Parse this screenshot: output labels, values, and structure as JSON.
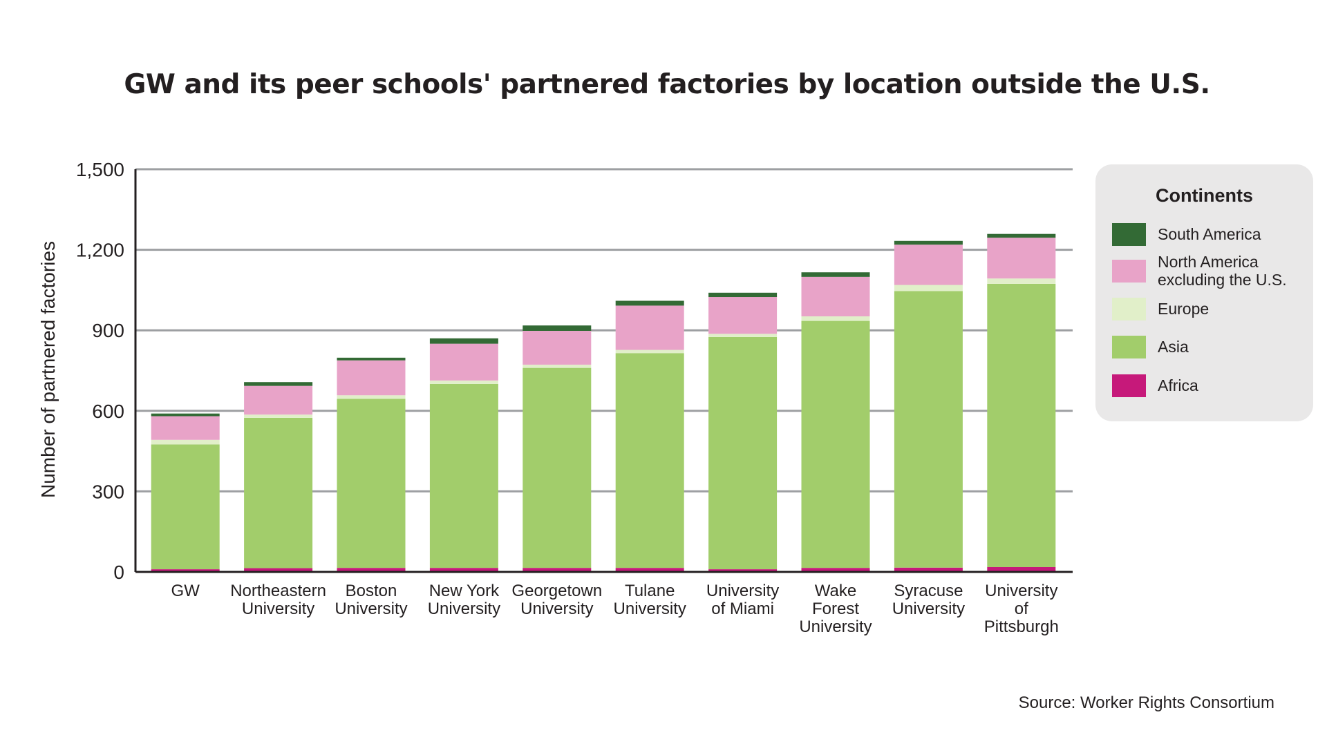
{
  "chart_data": {
    "type": "bar",
    "stacked": true,
    "title": "GW and its peer schools' partnered factories by location outside the U.S.",
    "xlabel": "",
    "ylabel": "Number of partnered factories",
    "ylim": [
      0,
      1500
    ],
    "yticks": [
      0,
      300,
      600,
      900,
      1200,
      1500
    ],
    "ytick_labels": [
      "0",
      "300",
      "600",
      "900",
      "1,200",
      "1,500"
    ],
    "grid": true,
    "legend_position": "right",
    "legend_title": "Continents",
    "categories": [
      [
        "GW"
      ],
      [
        "Northeastern",
        "University"
      ],
      [
        "Boston",
        "University"
      ],
      [
        "New York",
        "University"
      ],
      [
        "Georgetown",
        "University"
      ],
      [
        "Tulane",
        "University"
      ],
      [
        "University",
        "of Miami"
      ],
      [
        "Wake",
        "Forest",
        "University"
      ],
      [
        "Syracuse",
        "University"
      ],
      [
        "University",
        "of",
        "Pittsburgh"
      ]
    ],
    "series": [
      {
        "name": "Africa",
        "color": "#c6197a",
        "values": [
          10,
          14,
          15,
          15,
          15,
          15,
          10,
          15,
          16,
          18
        ]
      },
      {
        "name": "Asia",
        "color": "#a2cd6b",
        "values": [
          465,
          560,
          630,
          685,
          745,
          800,
          865,
          920,
          1030,
          1055
        ]
      },
      {
        "name": "Europe",
        "color": "#e1efc9",
        "values": [
          17,
          12,
          13,
          13,
          12,
          12,
          12,
          17,
          23,
          20
        ]
      },
      {
        "name": "North America\nexcluding the U.S.",
        "color": "#e8a3c8",
        "values": [
          88,
          107,
          130,
          137,
          126,
          165,
          137,
          147,
          150,
          152
        ]
      },
      {
        "name": "South America",
        "color": "#336a35",
        "values": [
          10,
          14,
          10,
          20,
          20,
          18,
          16,
          17,
          14,
          14
        ]
      }
    ],
    "legend_order": [
      "South America",
      "North America\nexcluding the U.S.",
      "Europe",
      "Asia",
      "Africa"
    ]
  },
  "source": "Source: Worker Rights Consortium"
}
